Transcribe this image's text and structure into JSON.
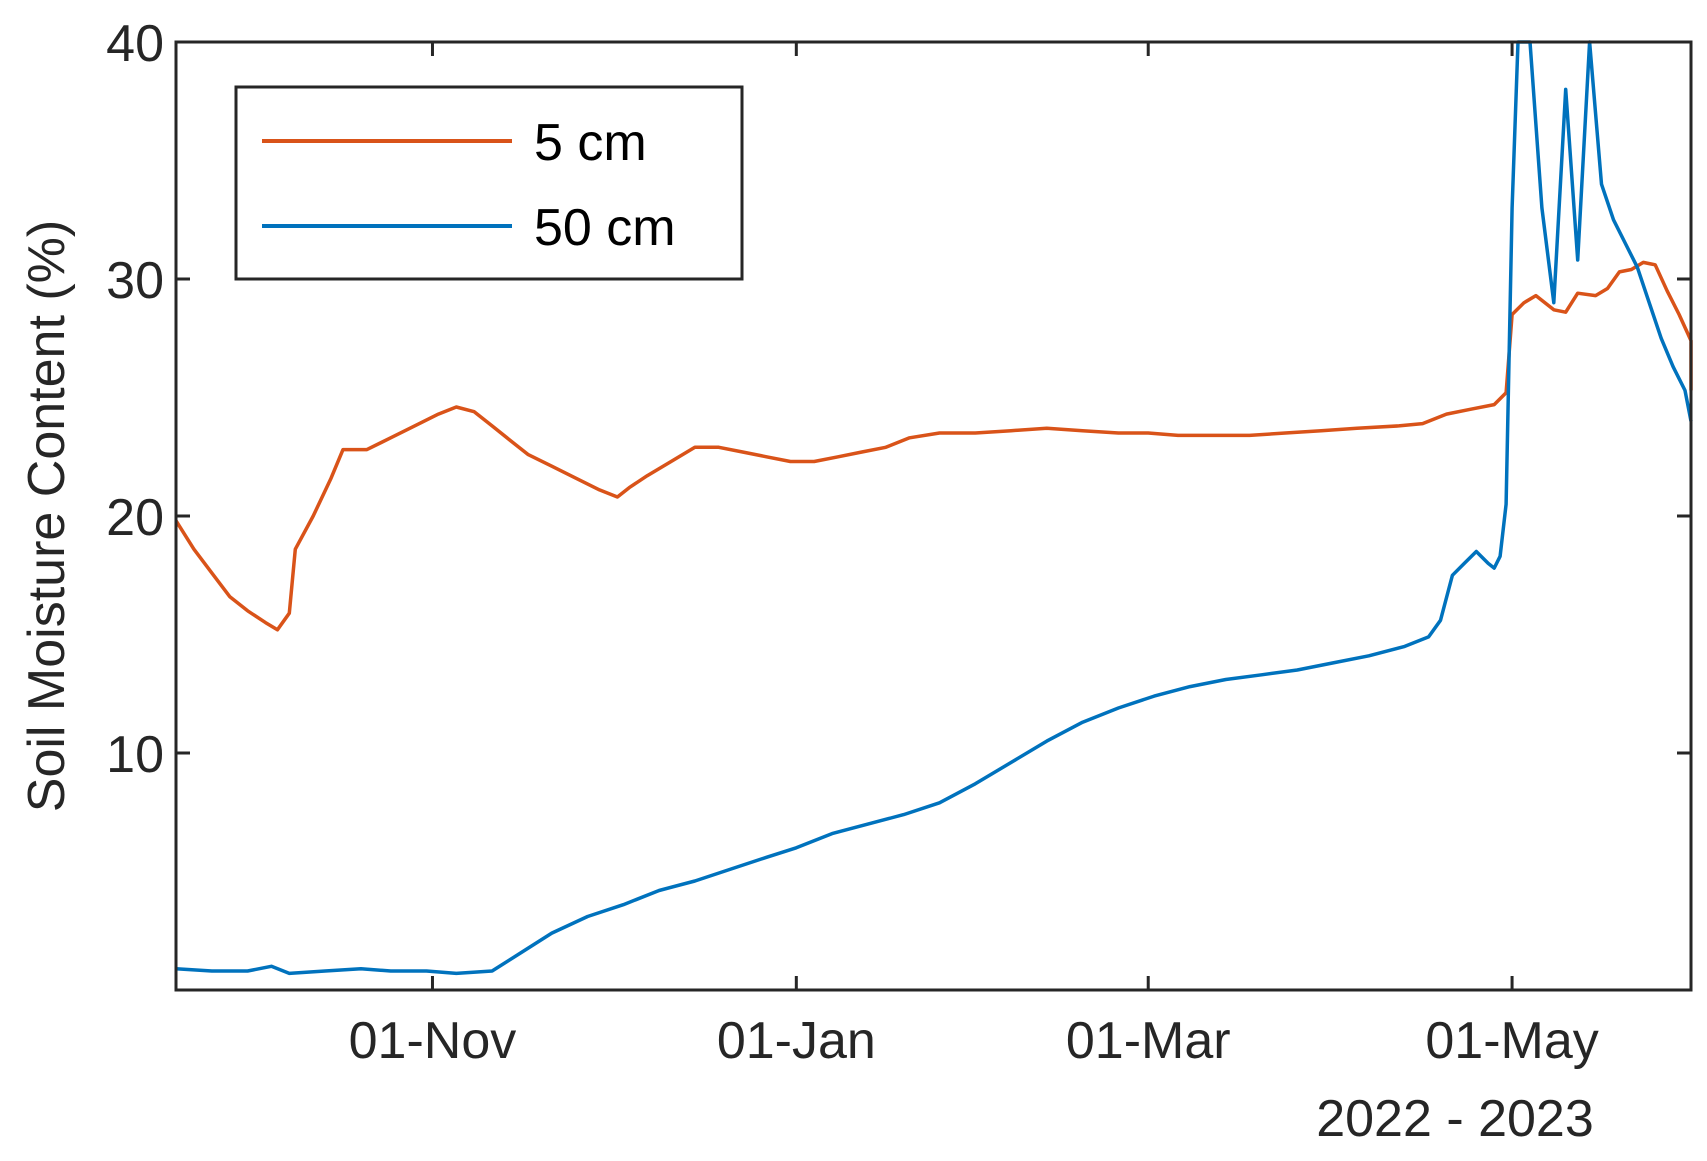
{
  "chart_data": {
    "type": "line",
    "title": "",
    "xlabel": "2022 - 2023",
    "ylabel": "Soil Moisture Content (%)",
    "xlim": [
      "2022-09-19",
      "2023-05-31"
    ],
    "ylim": [
      0,
      40
    ],
    "x_ticks": [
      {
        "date": "2022-11-01",
        "label": "01-Nov"
      },
      {
        "date": "2023-01-01",
        "label": "01-Jan"
      },
      {
        "date": "2023-03-01",
        "label": "01-Mar"
      },
      {
        "date": "2023-05-01",
        "label": "01-May"
      }
    ],
    "y_ticks": [
      {
        "value": 10,
        "label": "10"
      },
      {
        "value": 20,
        "label": "20"
      },
      {
        "value": 30,
        "label": "30"
      },
      {
        "value": 40,
        "label": "40"
      }
    ],
    "grid": false,
    "legend": {
      "position": "top-left",
      "entries": [
        "5 cm",
        "50 cm"
      ]
    },
    "series": [
      {
        "name": "5 cm",
        "color": "#D95319",
        "points": [
          [
            "2022-09-19",
            19.8
          ],
          [
            "2022-09-22",
            18.6
          ],
          [
            "2022-09-25",
            17.6
          ],
          [
            "2022-09-28",
            16.6
          ],
          [
            "2022-10-01",
            16.0
          ],
          [
            "2022-10-04",
            15.5
          ],
          [
            "2022-10-06",
            15.2
          ],
          [
            "2022-10-08",
            15.9
          ],
          [
            "2022-10-09",
            18.6
          ],
          [
            "2022-10-12",
            20.0
          ],
          [
            "2022-10-15",
            21.6
          ],
          [
            "2022-10-17",
            22.8
          ],
          [
            "2022-10-21",
            22.8
          ],
          [
            "2022-10-25",
            23.3
          ],
          [
            "2022-10-29",
            23.8
          ],
          [
            "2022-11-02",
            24.3
          ],
          [
            "2022-11-05",
            24.6
          ],
          [
            "2022-11-08",
            24.4
          ],
          [
            "2022-11-11",
            23.8
          ],
          [
            "2022-11-14",
            23.2
          ],
          [
            "2022-11-17",
            22.6
          ],
          [
            "2022-11-21",
            22.1
          ],
          [
            "2022-11-25",
            21.6
          ],
          [
            "2022-11-29",
            21.1
          ],
          [
            "2022-12-02",
            20.8
          ],
          [
            "2022-12-04",
            21.2
          ],
          [
            "2022-12-07",
            21.7
          ],
          [
            "2022-12-11",
            22.3
          ],
          [
            "2022-12-15",
            22.9
          ],
          [
            "2022-12-19",
            22.9
          ],
          [
            "2022-12-23",
            22.7
          ],
          [
            "2022-12-27",
            22.5
          ],
          [
            "2022-12-31",
            22.3
          ],
          [
            "2023-01-04",
            22.3
          ],
          [
            "2023-01-08",
            22.5
          ],
          [
            "2023-01-12",
            22.7
          ],
          [
            "2023-01-16",
            22.9
          ],
          [
            "2023-01-20",
            23.3
          ],
          [
            "2023-01-25",
            23.5
          ],
          [
            "2023-01-31",
            23.5
          ],
          [
            "2023-02-06",
            23.6
          ],
          [
            "2023-02-12",
            23.7
          ],
          [
            "2023-02-18",
            23.6
          ],
          [
            "2023-02-24",
            23.5
          ],
          [
            "2023-03-01",
            23.5
          ],
          [
            "2023-03-06",
            23.4
          ],
          [
            "2023-03-12",
            23.4
          ],
          [
            "2023-03-18",
            23.4
          ],
          [
            "2023-03-24",
            23.5
          ],
          [
            "2023-03-30",
            23.6
          ],
          [
            "2023-04-05",
            23.7
          ],
          [
            "2023-04-12",
            23.8
          ],
          [
            "2023-04-16",
            23.9
          ],
          [
            "2023-04-20",
            24.3
          ],
          [
            "2023-04-24",
            24.5
          ],
          [
            "2023-04-28",
            24.7
          ],
          [
            "2023-04-30",
            25.2
          ],
          [
            "2023-05-01",
            28.5
          ],
          [
            "2023-05-03",
            29.0
          ],
          [
            "2023-05-05",
            29.3
          ],
          [
            "2023-05-08",
            28.7
          ],
          [
            "2023-05-10",
            28.6
          ],
          [
            "2023-05-12",
            29.4
          ],
          [
            "2023-05-15",
            29.3
          ],
          [
            "2023-05-17",
            29.6
          ],
          [
            "2023-05-19",
            30.3
          ],
          [
            "2023-05-21",
            30.4
          ],
          [
            "2023-05-23",
            30.7
          ],
          [
            "2023-05-25",
            30.6
          ],
          [
            "2023-05-27",
            29.5
          ],
          [
            "2023-05-29",
            28.5
          ],
          [
            "2023-05-31",
            27.4
          ],
          [
            "2023-05-31",
            26.6
          ],
          [
            "2023-05-31",
            25.3
          ]
        ]
      },
      {
        "name": "50 cm",
        "color": "#0072BD",
        "points": [
          [
            "2022-09-19",
            0.9
          ],
          [
            "2022-09-25",
            0.8
          ],
          [
            "2022-10-01",
            0.8
          ],
          [
            "2022-10-05",
            1.0
          ],
          [
            "2022-10-08",
            0.7
          ],
          [
            "2022-10-14",
            0.8
          ],
          [
            "2022-10-20",
            0.9
          ],
          [
            "2022-10-25",
            0.8
          ],
          [
            "2022-10-31",
            0.8
          ],
          [
            "2022-11-05",
            0.7
          ],
          [
            "2022-11-11",
            0.8
          ],
          [
            "2022-11-16",
            1.6
          ],
          [
            "2022-11-21",
            2.4
          ],
          [
            "2022-11-27",
            3.1
          ],
          [
            "2022-12-03",
            3.6
          ],
          [
            "2022-12-09",
            4.2
          ],
          [
            "2022-12-15",
            4.6
          ],
          [
            "2022-12-21",
            5.1
          ],
          [
            "2022-12-27",
            5.6
          ],
          [
            "2023-01-01",
            6.0
          ],
          [
            "2023-01-07",
            6.6
          ],
          [
            "2023-01-13",
            7.0
          ],
          [
            "2023-01-19",
            7.4
          ],
          [
            "2023-01-25",
            7.9
          ],
          [
            "2023-01-31",
            8.7
          ],
          [
            "2023-02-06",
            9.6
          ],
          [
            "2023-02-12",
            10.5
          ],
          [
            "2023-02-18",
            11.3
          ],
          [
            "2023-02-24",
            11.9
          ],
          [
            "2023-03-02",
            12.4
          ],
          [
            "2023-03-08",
            12.8
          ],
          [
            "2023-03-14",
            13.1
          ],
          [
            "2023-03-20",
            13.3
          ],
          [
            "2023-03-26",
            13.5
          ],
          [
            "2023-04-01",
            13.8
          ],
          [
            "2023-04-07",
            14.1
          ],
          [
            "2023-04-13",
            14.5
          ],
          [
            "2023-04-17",
            14.9
          ],
          [
            "2023-04-19",
            15.6
          ],
          [
            "2023-04-21",
            17.5
          ],
          [
            "2023-04-23",
            18.0
          ],
          [
            "2023-04-25",
            18.5
          ],
          [
            "2023-04-27",
            18.0
          ],
          [
            "2023-04-28",
            17.8
          ],
          [
            "2023-04-29",
            18.3
          ],
          [
            "2023-04-30",
            20.5
          ],
          [
            "2023-05-01",
            33.0
          ],
          [
            "2023-05-02",
            40.0
          ],
          [
            "2023-05-04",
            40.0
          ],
          [
            "2023-05-06",
            33.0
          ],
          [
            "2023-05-08",
            29.0
          ],
          [
            "2023-05-10",
            38.0
          ],
          [
            "2023-05-12",
            30.8
          ],
          [
            "2023-05-14",
            40.0
          ],
          [
            "2023-05-16",
            34.0
          ],
          [
            "2023-05-18",
            32.5
          ],
          [
            "2023-05-20",
            31.5
          ],
          [
            "2023-05-22",
            30.5
          ],
          [
            "2023-05-24",
            29.0
          ],
          [
            "2023-05-26",
            27.5
          ],
          [
            "2023-05-28",
            26.3
          ],
          [
            "2023-05-30",
            25.3
          ],
          [
            "2023-05-31",
            24.0
          ]
        ]
      }
    ]
  }
}
